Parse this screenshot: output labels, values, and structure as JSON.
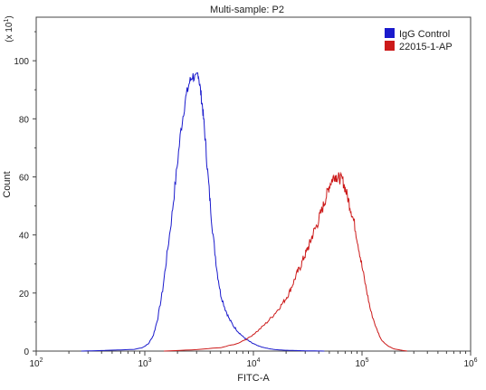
{
  "chart_data": {
    "type": "line",
    "title": "Multi-sample: P2",
    "xlabel": "FITC-A",
    "ylabel": "Count",
    "y_multiplier_label": "(x 10",
    "y_multiplier_exp": "1",
    "x_scale": "log",
    "xlim": [
      100,
      1000000
    ],
    "ylim": [
      0,
      1150
    ],
    "x_ticks": [
      {
        "value": 100,
        "base": "10",
        "exp": "2"
      },
      {
        "value": 1000,
        "base": "10",
        "exp": "3"
      },
      {
        "value": 10000,
        "base": "10",
        "exp": "4"
      },
      {
        "value": 100000,
        "base": "10",
        "exp": "5"
      },
      {
        "value": 1000000,
        "base": "10",
        "exp": "6"
      }
    ],
    "y_ticks": [
      {
        "value": 0,
        "label": "0"
      },
      {
        "value": 200,
        "label": "20"
      },
      {
        "value": 400,
        "label": "40"
      },
      {
        "value": 600,
        "label": "60"
      },
      {
        "value": 800,
        "label": "80"
      },
      {
        "value": 1000,
        "label": "100"
      }
    ],
    "grid": false,
    "legend_position": "top-right",
    "series": [
      {
        "name": "IgG Control",
        "color": "#1a1acc",
        "x": [
          260,
          400,
          600,
          800,
          950,
          1080,
          1200,
          1320,
          1460,
          1600,
          1780,
          1950,
          2150,
          2350,
          2550,
          2750,
          2950,
          3100,
          3250,
          3400,
          3550,
          3750,
          4000,
          4300,
          4650,
          5000,
          5500,
          6000,
          6600,
          7300,
          8000,
          8800,
          9700,
          11000,
          12500,
          14000,
          16000,
          19000,
          24000,
          30000,
          45000
        ],
        "y": [
          0,
          2,
          4,
          6,
          12,
          25,
          55,
          115,
          210,
          330,
          470,
          610,
          760,
          860,
          920,
          950,
          935,
          960,
          900,
          840,
          760,
          640,
          510,
          380,
          270,
          195,
          145,
          110,
          85,
          65,
          50,
          38,
          28,
          18,
          12,
          8,
          5,
          3,
          2,
          1,
          0
        ]
      },
      {
        "name": "22015-1-AP",
        "color": "#cc1a1a",
        "x": [
          1500,
          3000,
          5000,
          7000,
          9000,
          11000,
          13000,
          15000,
          17000,
          19000,
          21000,
          23000,
          25000,
          27000,
          29000,
          31000,
          33000,
          35000,
          38000,
          41000,
          44000,
          47000,
          50000,
          53000,
          56000,
          59000,
          62000,
          66000,
          70000,
          75000,
          80000,
          86000,
          93000,
          100000,
          110000,
          120000,
          135000,
          150000,
          170000,
          195000,
          230000,
          260000
        ],
        "y": [
          0,
          5,
          12,
          25,
          45,
          70,
          95,
          120,
          145,
          170,
          195,
          230,
          265,
          290,
          320,
          345,
          370,
          400,
          430,
          465,
          500,
          535,
          570,
          590,
          605,
          600,
          595,
          590,
          560,
          520,
          480,
          430,
          360,
          290,
          210,
          140,
          80,
          40,
          20,
          8,
          3,
          0
        ]
      }
    ]
  }
}
